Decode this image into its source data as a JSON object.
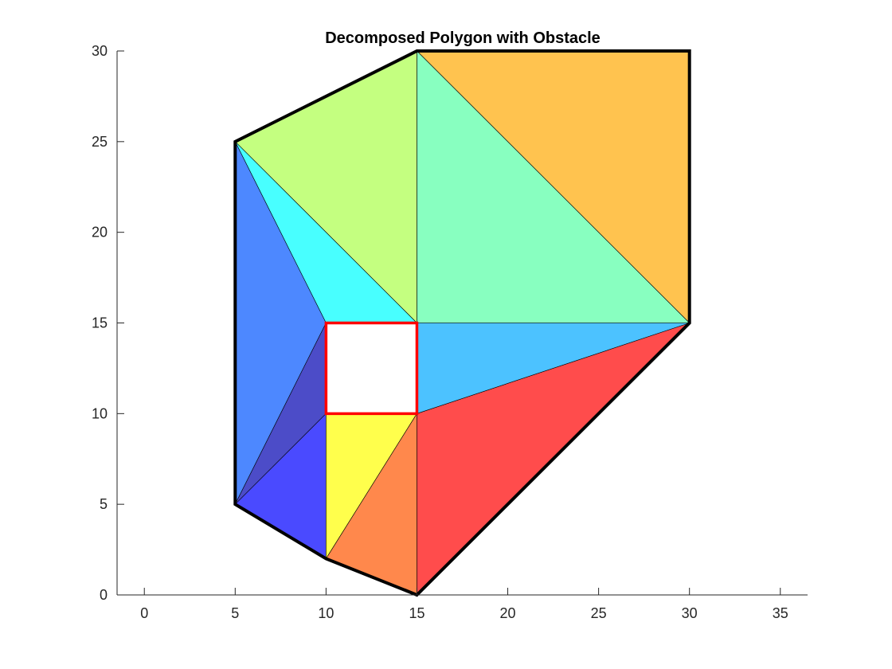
{
  "chart_data": {
    "type": "polygon-decomposition",
    "title": "Decomposed Polygon with Obstacle",
    "xlabel": "",
    "ylabel": "",
    "xlim": [
      -1.5,
      36.5
    ],
    "ylim": [
      0,
      30
    ],
    "x_ticks": [
      0,
      5,
      10,
      15,
      20,
      25,
      30,
      35
    ],
    "y_ticks": [
      0,
      5,
      10,
      15,
      20,
      25,
      30
    ],
    "grid": false,
    "cells": [
      {
        "name": "cell-orange-top-right",
        "color": "#FFC34F",
        "points": [
          [
            15,
            30
          ],
          [
            30,
            30
          ],
          [
            30,
            15
          ]
        ]
      },
      {
        "name": "cell-mint",
        "color": "#88FFC0",
        "points": [
          [
            15,
            30
          ],
          [
            30,
            15
          ],
          [
            15,
            15
          ]
        ]
      },
      {
        "name": "cell-light-green",
        "color": "#C4FF80",
        "points": [
          [
            5,
            25
          ],
          [
            15,
            30
          ],
          [
            15,
            15
          ]
        ]
      },
      {
        "name": "cell-cyan",
        "color": "#48FFFF",
        "points": [
          [
            5,
            25
          ],
          [
            15,
            15
          ],
          [
            10,
            15
          ]
        ]
      },
      {
        "name": "cell-blue-left",
        "color": "#4D88FF",
        "points": [
          [
            5,
            25
          ],
          [
            10,
            15
          ],
          [
            5,
            5
          ]
        ]
      },
      {
        "name": "cell-navy-sliver",
        "color": "#4C4CC8",
        "points": [
          [
            10,
            15
          ],
          [
            10,
            10
          ],
          [
            5,
            5
          ]
        ]
      },
      {
        "name": "cell-blue-bottom",
        "color": "#4A4AFF",
        "points": [
          [
            5,
            5
          ],
          [
            10,
            10
          ],
          [
            10,
            2
          ]
        ]
      },
      {
        "name": "cell-yellow",
        "color": "#FFFF4C",
        "points": [
          [
            10,
            10
          ],
          [
            15,
            10
          ],
          [
            10,
            2
          ]
        ]
      },
      {
        "name": "cell-orange-bottom",
        "color": "#FF884C",
        "points": [
          [
            10,
            2
          ],
          [
            15,
            10
          ],
          [
            15,
            0
          ]
        ]
      },
      {
        "name": "cell-red",
        "color": "#FF4C4C",
        "points": [
          [
            15,
            0
          ],
          [
            15,
            10
          ],
          [
            30,
            15
          ]
        ]
      },
      {
        "name": "cell-sky-blue",
        "color": "#4CC2FF",
        "points": [
          [
            15,
            15
          ],
          [
            30,
            15
          ],
          [
            15,
            10
          ]
        ]
      }
    ],
    "boundary": [
      [
        15,
        0
      ],
      [
        30,
        15
      ],
      [
        30,
        30
      ],
      [
        15,
        30
      ],
      [
        5,
        25
      ],
      [
        5,
        5
      ],
      [
        10,
        2
      ]
    ],
    "boundary_color": "#000000",
    "obstacle": [
      [
        10,
        10
      ],
      [
        15,
        10
      ],
      [
        15,
        15
      ],
      [
        10,
        15
      ]
    ],
    "obstacle_color": "#FF0000"
  }
}
